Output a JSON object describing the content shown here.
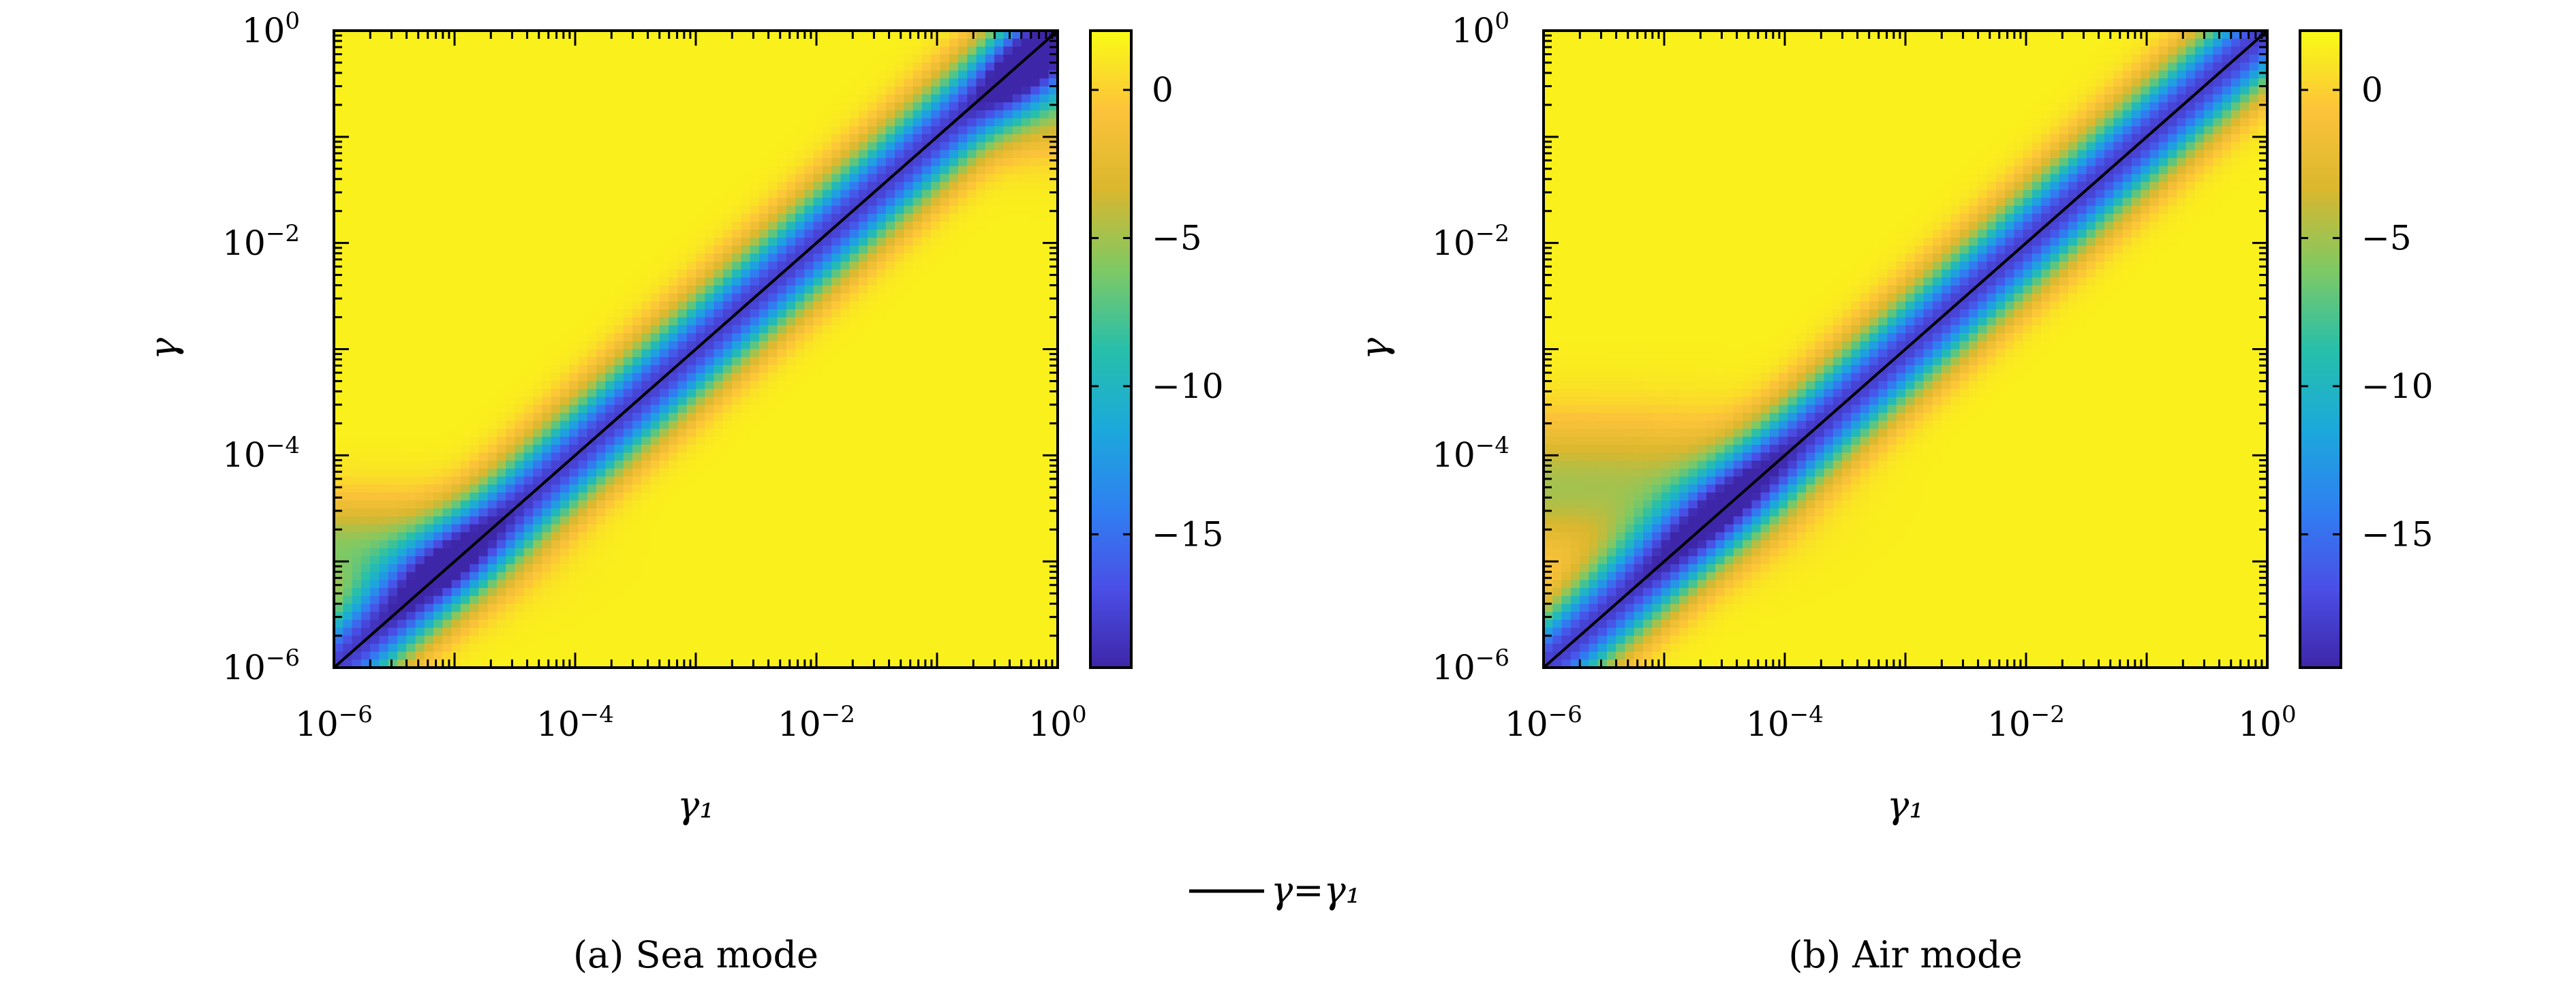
{
  "legend": {
    "line_label": "γ=γ₁"
  },
  "chart_data": [
    {
      "type": "heatmap",
      "caption": "(a) Sea mode",
      "xlabel": "γ₁",
      "ylabel": "γ",
      "xscale": "log",
      "yscale": "log",
      "xlim": [
        1e-06,
        1
      ],
      "ylim": [
        1e-06,
        1
      ],
      "xticks": [
        {
          "base": "10",
          "exp": "−6"
        },
        {
          "base": "10",
          "exp": "−4"
        },
        {
          "base": "10",
          "exp": "−2"
        },
        {
          "base": "10",
          "exp": "0"
        }
      ],
      "yticks": [
        {
          "base": "10",
          "exp": "−6"
        },
        {
          "base": "10",
          "exp": "−4"
        },
        {
          "base": "10",
          "exp": "−2"
        },
        {
          "base": "10",
          "exp": "0"
        }
      ],
      "colorbar": {
        "min": -19.5,
        "max": 2,
        "ticks": [
          0,
          -5,
          -10,
          -15
        ],
        "tick_labels": [
          "0",
          "−5",
          "−10",
          "−15"
        ]
      },
      "reference_line": {
        "name": "γ=γ₁",
        "x": [
          1e-06,
          1
        ],
        "y": [
          1e-06,
          1
        ]
      },
      "model": {
        "floor_center": -4.9,
        "floor_width": 0.35,
        "floor_depth": -7.5,
        "band_depth": -19.5,
        "band_width": 0.35,
        "upper_cut": -0.5
      }
    },
    {
      "type": "heatmap",
      "caption": "(b) Air mode",
      "xlabel": "γ₁",
      "ylabel": "γ",
      "xscale": "log",
      "yscale": "log",
      "xlim": [
        1e-06,
        1
      ],
      "ylim": [
        1e-06,
        1
      ],
      "xticks": [
        {
          "base": "10",
          "exp": "−6"
        },
        {
          "base": "10",
          "exp": "−4"
        },
        {
          "base": "10",
          "exp": "−2"
        },
        {
          "base": "10",
          "exp": "0"
        }
      ],
      "yticks": [
        {
          "base": "10",
          "exp": "−6"
        },
        {
          "base": "10",
          "exp": "−4"
        },
        {
          "base": "10",
          "exp": "−2"
        },
        {
          "base": "10",
          "exp": "0"
        }
      ],
      "colorbar": {
        "min": -19.5,
        "max": 2,
        "ticks": [
          0,
          -5,
          -10,
          -15
        ],
        "tick_labels": [
          "0",
          "−5",
          "−10",
          "−15"
        ]
      },
      "reference_line": {
        "name": "γ=γ₁",
        "x": [
          1e-06,
          1
        ],
        "y": [
          1e-06,
          1
        ]
      },
      "model": {
        "floor_center": -4.3,
        "floor_width": 0.45,
        "floor_depth": -6.5,
        "band_depth": -19.5,
        "band_width": 0.35,
        "upper_cut": 1
      }
    }
  ]
}
